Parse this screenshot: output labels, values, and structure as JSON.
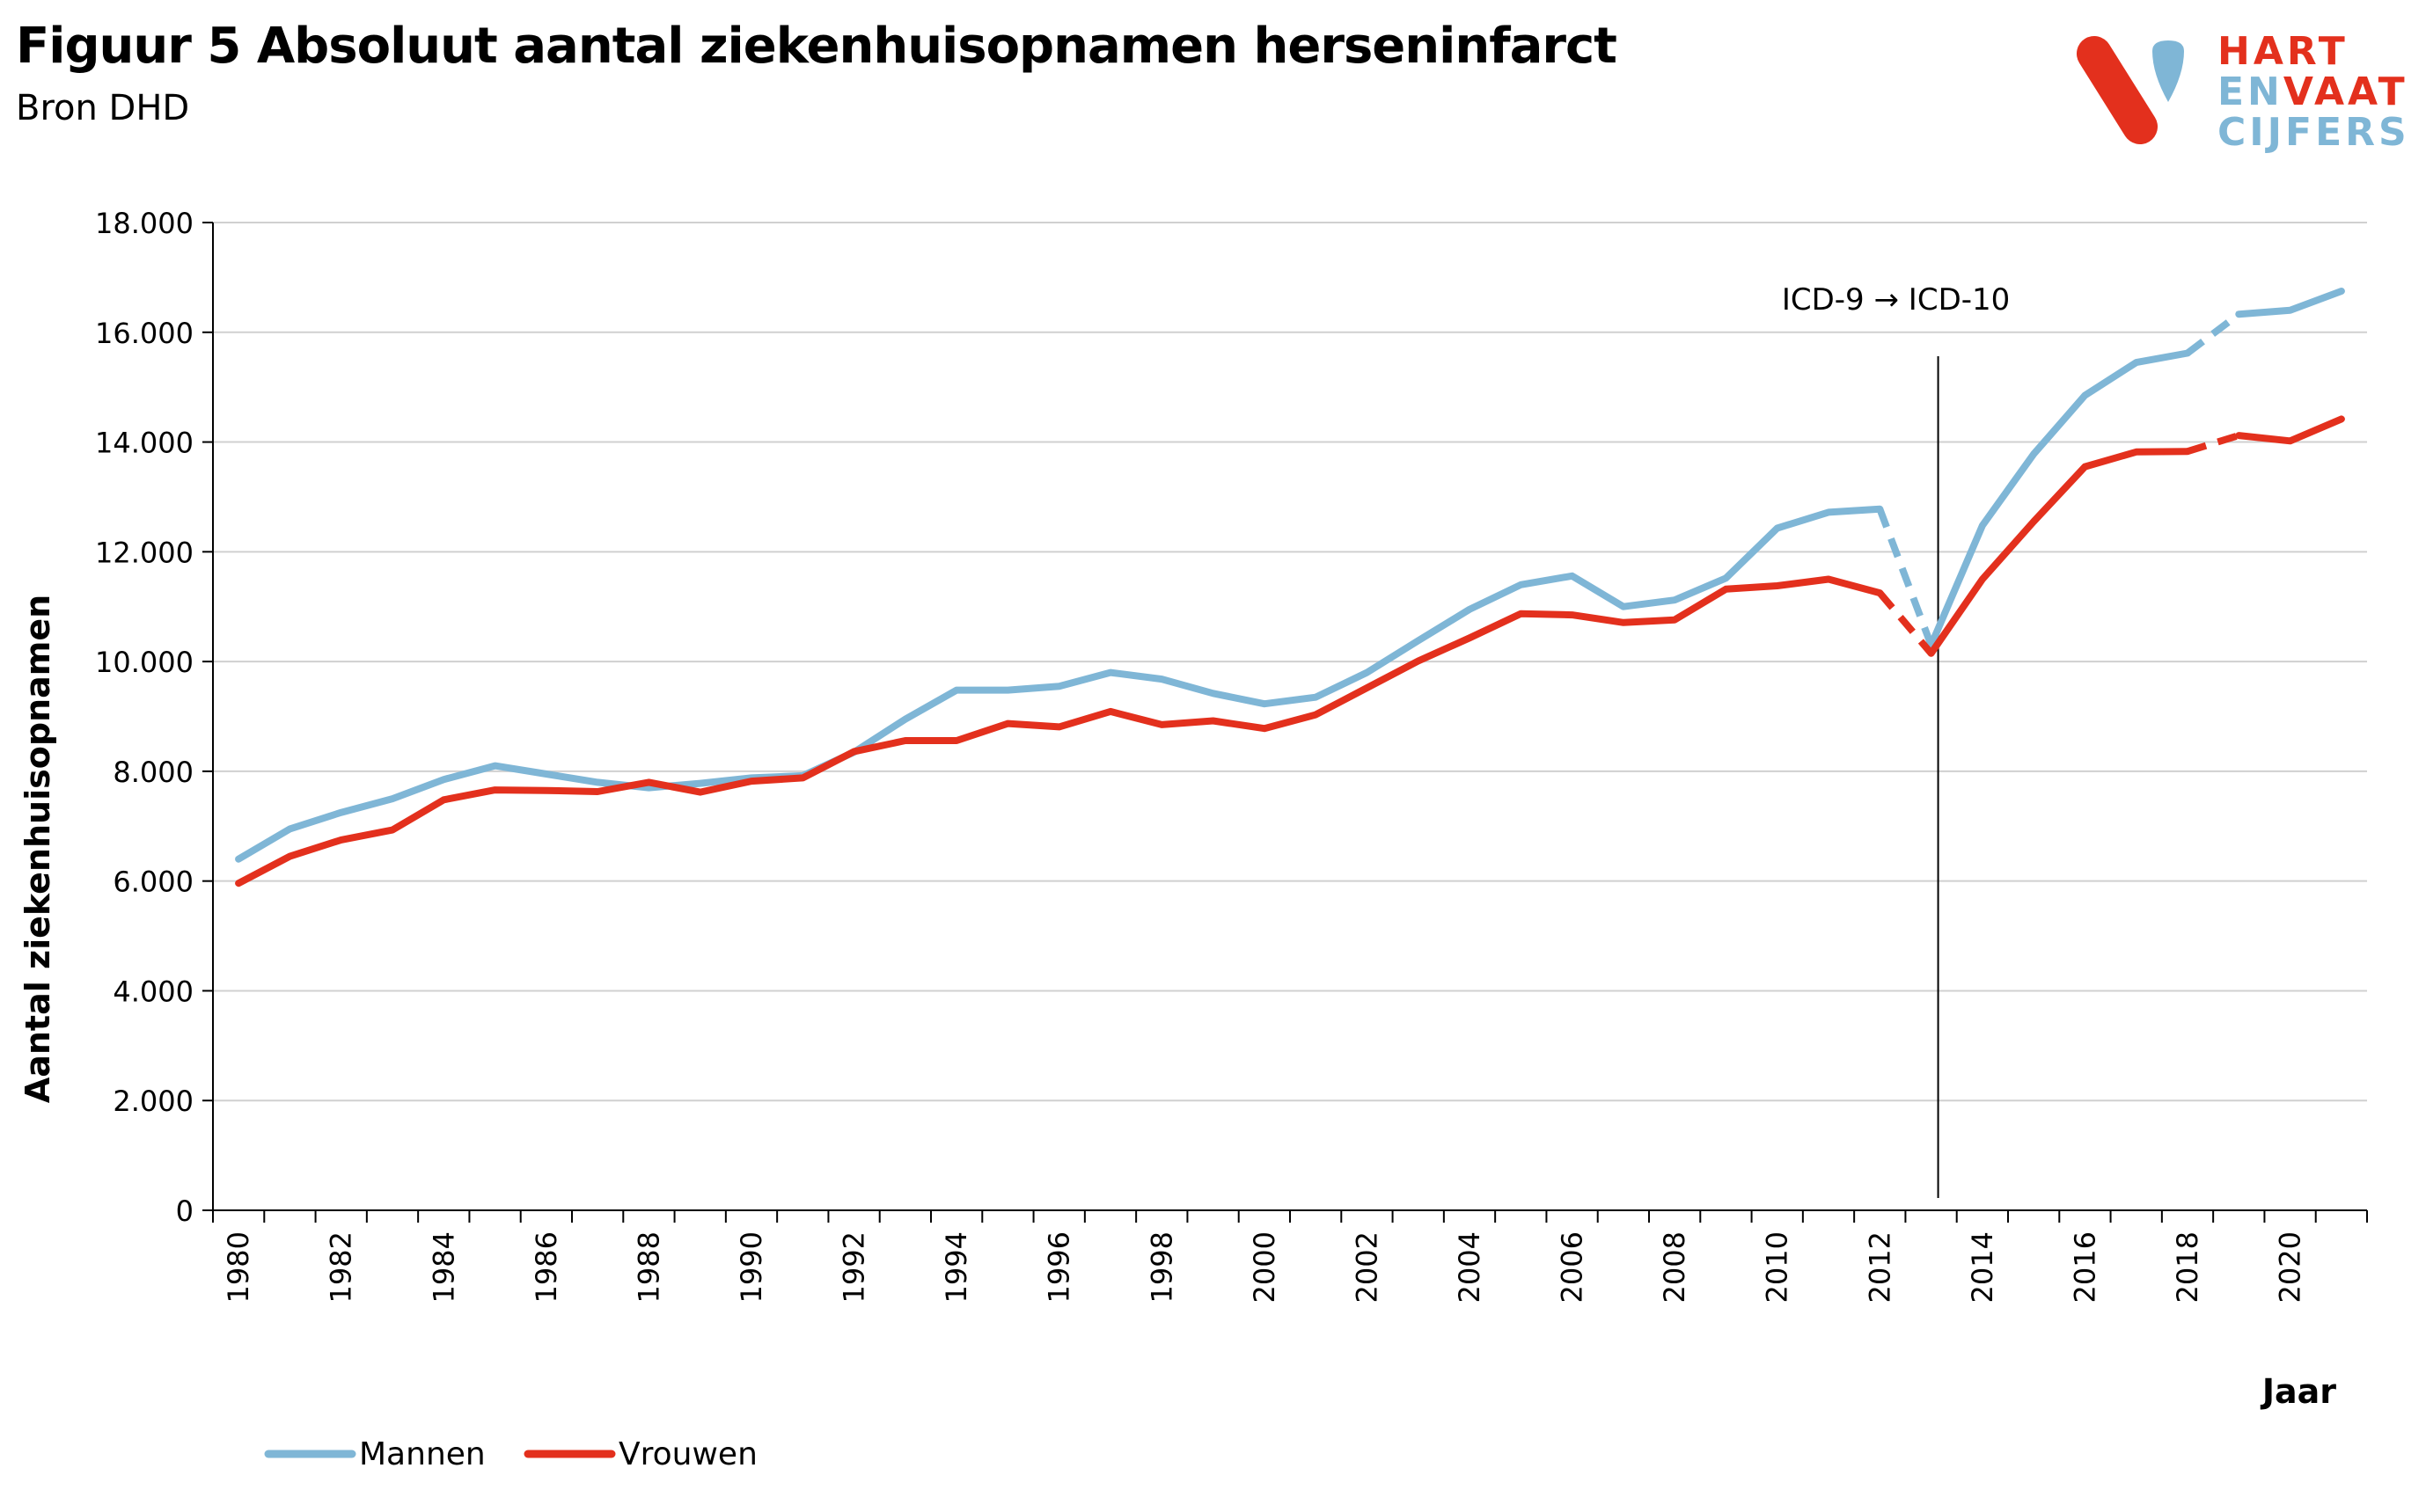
{
  "title": "Figuur 5 Absoluut aantal ziekenhuisopnamen herseninfarct",
  "subtitle": "Bron DHD",
  "logo": {
    "line1": "HART",
    "line2a": "EN",
    "line2b": "VAAT",
    "line3": "CIJFERS"
  },
  "chart_data": {
    "type": "line",
    "xlabel": "Jaar",
    "ylabel": "Aantal ziekenhuisopnamen",
    "ylim": [
      0,
      18000
    ],
    "yticks": [
      0,
      2000,
      4000,
      6000,
      8000,
      10000,
      12000,
      14000,
      16000,
      18000
    ],
    "ytick_labels": [
      "0",
      "2.000",
      "4.000",
      "6.000",
      "8.000",
      "10.000",
      "12.000",
      "14.000",
      "16.000",
      "18.000"
    ],
    "xlim": [
      1980,
      2021
    ],
    "xticks": [
      1980,
      1982,
      1984,
      1986,
      1988,
      1990,
      1992,
      1994,
      1996,
      1998,
      2000,
      2002,
      2004,
      2006,
      2008,
      2010,
      2012,
      2014,
      2016,
      2018,
      2020
    ],
    "xtick_labels": [
      "1980",
      "1982",
      "1984",
      "1986",
      "1988",
      "1990",
      "1992",
      "1994",
      "1996",
      "1998",
      "2000",
      "2002",
      "2004",
      "2006",
      "2008",
      "2010",
      "2012",
      "2014",
      "2016",
      "2018",
      "2020"
    ],
    "grid": true,
    "legend": "bottom-left",
    "annotation": {
      "text": "ICD-9 → ICD-10",
      "x": 2013
    },
    "dashed_segments": [
      [
        2012,
        2013
      ],
      [
        2018,
        2019
      ]
    ],
    "x": [
      1980,
      1981,
      1982,
      1983,
      1984,
      1985,
      1986,
      1987,
      1988,
      1989,
      1990,
      1991,
      1992,
      1993,
      1994,
      1995,
      1996,
      1997,
      1998,
      1999,
      2000,
      2001,
      2002,
      2003,
      2004,
      2005,
      2006,
      2007,
      2008,
      2009,
      2010,
      2011,
      2012,
      2013,
      2014,
      2015,
      2016,
      2017,
      2018,
      2019,
      2020,
      2021
    ],
    "series": [
      {
        "name": "Mannen",
        "color": "#7fb6d6",
        "values": [
          6400,
          6950,
          7250,
          7500,
          7850,
          8100,
          7950,
          7800,
          7700,
          7780,
          7880,
          7920,
          8350,
          8950,
          9480,
          9480,
          9550,
          9800,
          9680,
          9420,
          9230,
          9350,
          9800,
          10380,
          10950,
          11400,
          11560,
          11000,
          11120,
          11520,
          12430,
          12720,
          12780,
          10300,
          12480,
          13780,
          14850,
          15450,
          15620,
          16330,
          16400,
          16750
        ]
      },
      {
        "name": "Vrouwen",
        "color": "#e3301d",
        "values": [
          5960,
          6450,
          6750,
          6930,
          7480,
          7660,
          7650,
          7630,
          7800,
          7620,
          7820,
          7880,
          8360,
          8560,
          8560,
          8870,
          8810,
          9090,
          8850,
          8920,
          8780,
          9030,
          9520,
          10010,
          10430,
          10870,
          10850,
          10710,
          10760,
          11320,
          11380,
          11500,
          11250,
          10150,
          11500,
          12550,
          13550,
          13820,
          13830,
          14120,
          14020,
          14420
        ]
      }
    ]
  }
}
